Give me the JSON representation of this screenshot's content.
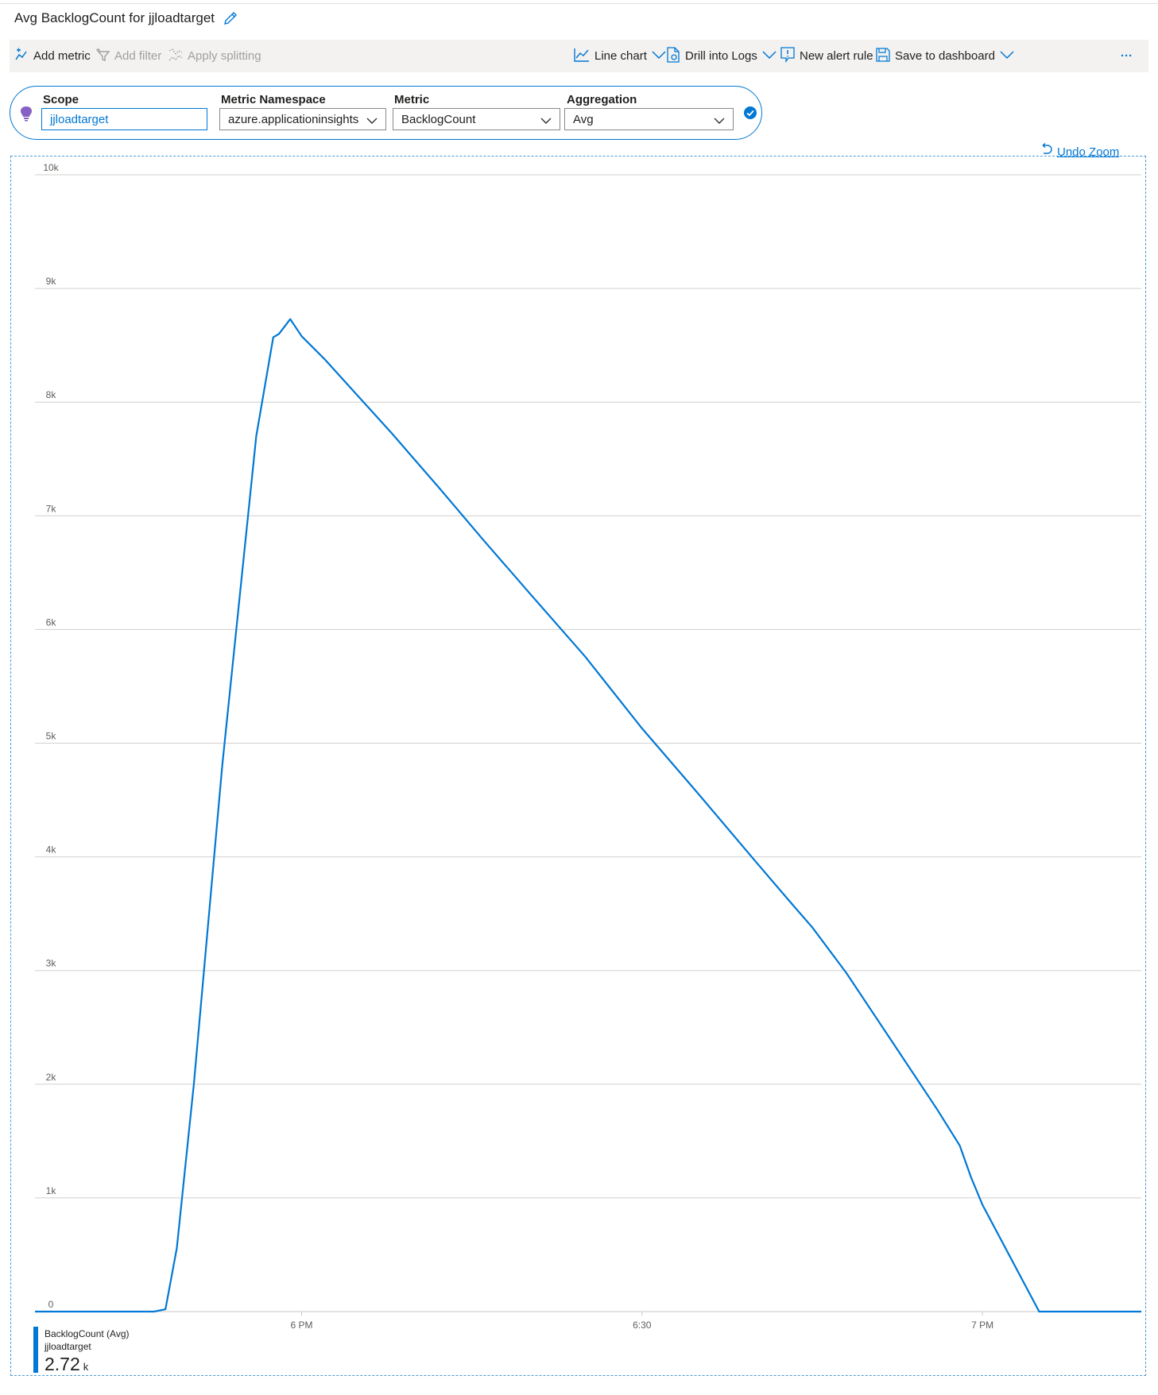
{
  "header": {
    "title": "Avg BacklogCount for jjloadtarget"
  },
  "toolbar": {
    "add_metric": "Add metric",
    "add_filter": "Add filter",
    "apply_splitting": "Apply splitting",
    "line_chart": "Line chart",
    "drill_logs": "Drill into Logs",
    "new_alert": "New alert rule",
    "save_dashboard": "Save to dashboard",
    "more": "···"
  },
  "selectors": {
    "scope_label": "Scope",
    "scope_value": "jjloadtarget",
    "namespace_label": "Metric Namespace",
    "namespace_value": "azure.applicationinsights",
    "metric_label": "Metric",
    "metric_value": "BacklogCount",
    "aggregation_label": "Aggregation",
    "aggregation_value": "Avg"
  },
  "undo_zoom": "Undo Zoom",
  "legend": {
    "name": "BacklogCount (Avg)",
    "sub": "jjloadtarget",
    "value": "2.72",
    "unit": "k"
  },
  "colors": {
    "accent": "#0078d4",
    "series": "#0078d4",
    "grid": "#d2d0ce"
  },
  "chart_data": {
    "type": "line",
    "title": "Avg BacklogCount for jjloadtarget",
    "ylim": [
      0,
      10000
    ],
    "yticks": [
      0,
      1000,
      2000,
      3000,
      4000,
      5000,
      6000,
      7000,
      8000,
      9000,
      10000
    ],
    "ytick_labels": [
      "0",
      "1k",
      "2k",
      "3k",
      "4k",
      "5k",
      "6k",
      "7k",
      "8k",
      "9k",
      "10k"
    ],
    "xlim": [
      -23.5,
      74
    ],
    "xticks": [
      0,
      30,
      60
    ],
    "xtick_labels": [
      "6 PM",
      "6:30",
      "7 PM"
    ],
    "grid": true,
    "series": [
      {
        "name": "BacklogCount (Avg)",
        "x": [
          -23.5,
          -13,
          -12,
          -11,
          -9.5,
          -7,
          -4,
          -2.5,
          -2,
          -1,
          0,
          2,
          4,
          6,
          8,
          12,
          16,
          20,
          25,
          30,
          35,
          40,
          43,
          45,
          48,
          52,
          56,
          58,
          59,
          60,
          65,
          70,
          74
        ],
        "y": [
          0,
          0,
          20,
          560,
          2000,
          4800,
          7700,
          8570,
          8600,
          8730,
          8580,
          8380,
          8160,
          7940,
          7720,
          7260,
          6790,
          6330,
          5760,
          5130,
          4550,
          3960,
          3610,
          3380,
          2980,
          2380,
          1780,
          1460,
          1180,
          940,
          0,
          0,
          0
        ]
      }
    ]
  }
}
